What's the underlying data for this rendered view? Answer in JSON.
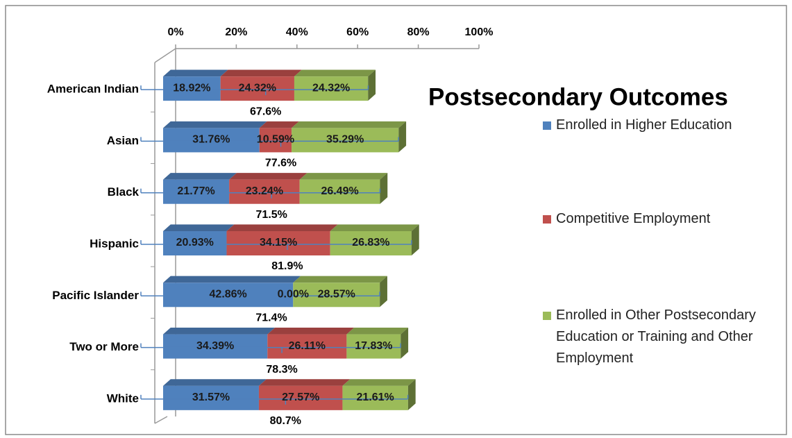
{
  "chart_data": {
    "type": "bar",
    "orientation": "horizontal",
    "stacked": true,
    "title": "Postsecondary Outcomes",
    "categories": [
      "American Indian",
      "Asian",
      "Black",
      "Hispanic",
      "Pacific Islander",
      "Two or More",
      "White"
    ],
    "series": [
      {
        "name": "Enrolled in Higher Education",
        "color": "#4f81bd",
        "values": [
          18.92,
          31.76,
          21.77,
          20.93,
          42.86,
          34.39,
          31.57
        ],
        "value_labels": [
          "18.92%",
          "31.76%",
          "21.77%",
          "20.93%",
          "42.86%",
          "34.39%",
          "31.57%"
        ]
      },
      {
        "name": "Competitive Employment",
        "color": "#c0504d",
        "values": [
          24.32,
          10.59,
          23.24,
          34.15,
          0.0,
          26.11,
          27.57
        ],
        "value_labels": [
          "24.32%",
          "10.59%",
          "23.24%",
          "34.15%",
          "0.00%",
          "26.11%",
          "27.57%"
        ]
      },
      {
        "name": "Enrolled in Other Postsecondary Education or Training and Other Employment",
        "color": "#9bbb59",
        "values": [
          24.32,
          35.29,
          26.49,
          26.83,
          28.57,
          17.83,
          21.61
        ],
        "value_labels": [
          "24.32%",
          "35.29%",
          "26.49%",
          "26.83%",
          "28.57%",
          "17.83%",
          "21.61%"
        ]
      }
    ],
    "totals": {
      "values": [
        67.6,
        77.6,
        71.5,
        81.9,
        71.4,
        78.3,
        80.7
      ],
      "value_labels": [
        "67.6%",
        "77.6%",
        "71.5%",
        "81.9%",
        "71.4%",
        "78.3%",
        "80.7%"
      ]
    },
    "xlim": [
      0,
      100
    ],
    "xticks": [
      {
        "value": 0,
        "label": "0%"
      },
      {
        "value": 20,
        "label": "20%"
      },
      {
        "value": 40,
        "label": "40%"
      },
      {
        "value": 60,
        "label": "60%"
      },
      {
        "value": 80,
        "label": "80%"
      },
      {
        "value": 100,
        "label": "100%"
      }
    ],
    "legend": "right"
  }
}
